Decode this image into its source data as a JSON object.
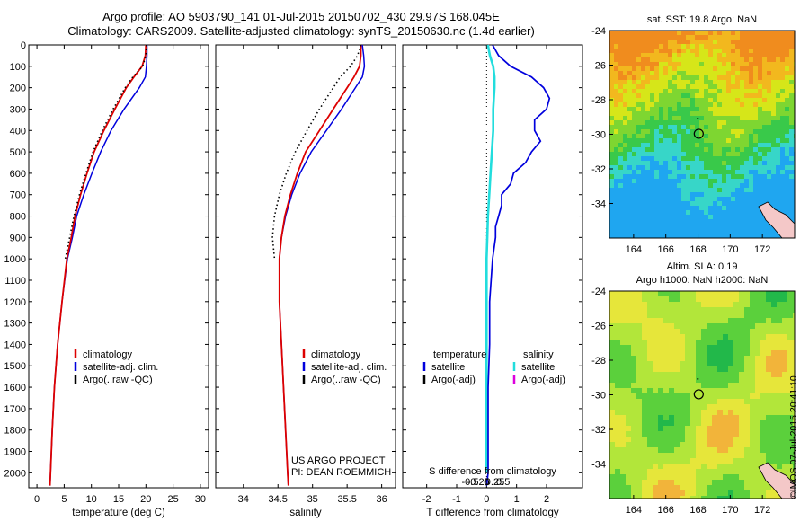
{
  "header": {
    "line1": "Argo profile: AO 5903790_141 01-Jul-2015 20150702_430 29.97S 168.045E",
    "line2": "Climatology: CARS2009. Satellite-adjusted climatology: synTS_20150630.nc (1.4d earlier)"
  },
  "colors": {
    "climatology": "#dd0000",
    "satellite": "#0000dd",
    "argo": "#000000",
    "salinity_sat": "#22dddd",
    "salinity_argo": "#dd00dd"
  },
  "depth_axis": {
    "ticks": [
      0,
      100,
      200,
      300,
      400,
      500,
      600,
      700,
      800,
      900,
      1000,
      1100,
      1200,
      1300,
      1400,
      1500,
      1600,
      1700,
      1800,
      1900,
      2000
    ],
    "range": [
      0,
      2070
    ]
  },
  "chart_data": [
    {
      "type": "line",
      "xlabel": "temperature (deg C)",
      "xlim": [
        -1.5,
        31.5
      ],
      "xticks": [
        0,
        5,
        10,
        15,
        20,
        25,
        30
      ],
      "legend": [
        "climatology",
        "satellite-adj. clim.",
        "Argo(..raw -QC)"
      ],
      "series": [
        {
          "name": "climatology",
          "depth": [
            0,
            50,
            100,
            150,
            200,
            300,
            400,
            500,
            600,
            700,
            800,
            900,
            1000,
            1200,
            1400,
            1600,
            1800,
            2000,
            2060
          ],
          "values": [
            20.0,
            19.9,
            19.3,
            17.8,
            16.4,
            14.3,
            12.3,
            10.5,
            9.2,
            8.0,
            7.0,
            6.3,
            5.5,
            4.6,
            3.8,
            3.2,
            2.8,
            2.5,
            2.4
          ]
        },
        {
          "name": "satellite-adj. clim.",
          "depth": [
            0,
            50,
            100,
            150,
            200,
            300,
            400,
            500,
            600,
            700,
            800,
            900,
            1000,
            1200,
            1400,
            1600,
            1800,
            2000,
            2060
          ],
          "values": [
            20.2,
            20.2,
            20.1,
            19.9,
            18.8,
            16.0,
            13.6,
            11.7,
            10.1,
            8.6,
            7.3,
            6.5,
            5.6,
            4.6,
            3.8,
            3.2,
            2.8,
            2.5,
            2.4
          ]
        },
        {
          "name": "Argo(..raw -QC)",
          "depth": [
            0,
            50,
            100,
            150,
            200,
            300,
            400,
            500,
            600,
            700,
            800,
            900,
            1000
          ],
          "values": [
            20.1,
            20.0,
            19.4,
            17.6,
            16.2,
            14.0,
            12.0,
            10.3,
            9.0,
            7.8,
            6.8,
            6.0,
            5.2
          ]
        }
      ]
    },
    {
      "type": "line",
      "xlabel": "salinity",
      "xlim": [
        33.6,
        36.2
      ],
      "xticks": [
        34,
        34.5,
        35,
        35.5,
        36
      ],
      "legend": [
        "climatology",
        "satellite-adj. clim.",
        "Argo(..raw -QC)"
      ],
      "annotation": [
        "US ARGO PROJECT",
        "PI: DEAN ROEMMICH"
      ],
      "series": [
        {
          "name": "climatology",
          "depth": [
            0,
            50,
            100,
            150,
            200,
            300,
            400,
            500,
            600,
            700,
            800,
            900,
            1000,
            1200,
            1400,
            1600,
            1800,
            2000,
            2060
          ],
          "values": [
            35.7,
            35.7,
            35.68,
            35.6,
            35.5,
            35.3,
            35.1,
            34.9,
            34.78,
            34.68,
            34.6,
            34.55,
            34.52,
            34.52,
            34.55,
            34.58,
            34.61,
            34.64,
            34.65
          ]
        },
        {
          "name": "satellite-adj. clim.",
          "depth": [
            0,
            50,
            100,
            150,
            200,
            300,
            400,
            500,
            600,
            700,
            800,
            900,
            1000,
            1200,
            1400,
            1600,
            1800,
            2000,
            2060
          ],
          "values": [
            35.72,
            35.74,
            35.75,
            35.72,
            35.62,
            35.42,
            35.2,
            34.98,
            34.82,
            34.7,
            34.61,
            34.55,
            34.52,
            34.52,
            34.55,
            34.58,
            34.61,
            34.64,
            34.65
          ]
        },
        {
          "name": "Argo(..raw -QC)",
          "depth": [
            0,
            50,
            100,
            150,
            200,
            300,
            400,
            500,
            600,
            700,
            800,
            900,
            1000
          ],
          "values": [
            35.7,
            35.65,
            35.55,
            35.4,
            35.3,
            35.1,
            34.92,
            34.75,
            34.62,
            34.52,
            34.45,
            34.42,
            34.45
          ]
        }
      ]
    },
    {
      "type": "line",
      "xlabel": "T difference from climatology",
      "xlabel_top": "S difference from climatology",
      "xlim": [
        -2.8,
        3.2
      ],
      "xticks": [
        -2,
        -1,
        0,
        1,
        2
      ],
      "xticks_top": [
        -0.5,
        -0.25,
        0,
        0.25,
        0.5
      ],
      "legend_left": {
        "title": "temperature",
        "items": [
          "satellite",
          "Argo(-adj)"
        ]
      },
      "legend_right": {
        "title": "salinity",
        "items": [
          "satellite",
          "Argo(-adj)"
        ]
      },
      "series": [
        {
          "name": "T satellite",
          "depth": [
            0,
            50,
            100,
            150,
            200,
            250,
            300,
            350,
            400,
            450,
            500,
            550,
            600,
            650,
            700,
            750,
            800,
            850,
            900,
            1000,
            1200,
            1400,
            1600,
            1800,
            2000,
            2060
          ],
          "values": [
            0.2,
            0.4,
            0.8,
            1.5,
            1.9,
            2.1,
            2.0,
            1.6,
            1.6,
            1.8,
            1.5,
            1.3,
            0.9,
            0.8,
            0.5,
            0.5,
            0.4,
            0.3,
            0.3,
            0.2,
            0.1,
            0.1,
            0.05,
            0.05,
            0.05,
            0.0
          ]
        },
        {
          "name": "S satellite",
          "depth": [
            0,
            50,
            100,
            150,
            200,
            300,
            400,
            500,
            600,
            700,
            800,
            900,
            1000,
            1200,
            1400,
            1600,
            1800,
            2000
          ],
          "values": [
            0.02,
            0.05,
            0.1,
            0.12,
            0.12,
            0.1,
            0.1,
            0.08,
            0.06,
            0.04,
            0.02,
            0.01,
            0.0,
            0.0,
            0.0,
            0.0,
            0.0,
            0.0
          ]
        }
      ]
    },
    {
      "type": "heatmap",
      "title": "sat. SST: 19.8 Argo: NaN",
      "xticks": [
        164,
        166,
        168,
        170,
        172
      ],
      "yticks": [
        -24,
        -26,
        -28,
        -30,
        -32,
        -34
      ],
      "xlim": [
        162.5,
        174
      ],
      "ylim": [
        -36,
        -24
      ],
      "marker": {
        "lon": 168.045,
        "lat": -29.97
      }
    },
    {
      "type": "heatmap",
      "title": "Altim. SLA: 0.19",
      "subtitle": "Argo h1000: NaN h2000: NaN",
      "xticks": [
        164,
        166,
        168,
        170,
        172
      ],
      "yticks": [
        -24,
        -26,
        -28,
        -30,
        -32,
        -34
      ],
      "xlim": [
        162.5,
        174
      ],
      "ylim": [
        -36,
        -24
      ],
      "marker": {
        "lon": 168.045,
        "lat": -29.97
      }
    }
  ],
  "footer": {
    "stamp": "©IMOS 07-Jul-2015 20:41:10"
  }
}
